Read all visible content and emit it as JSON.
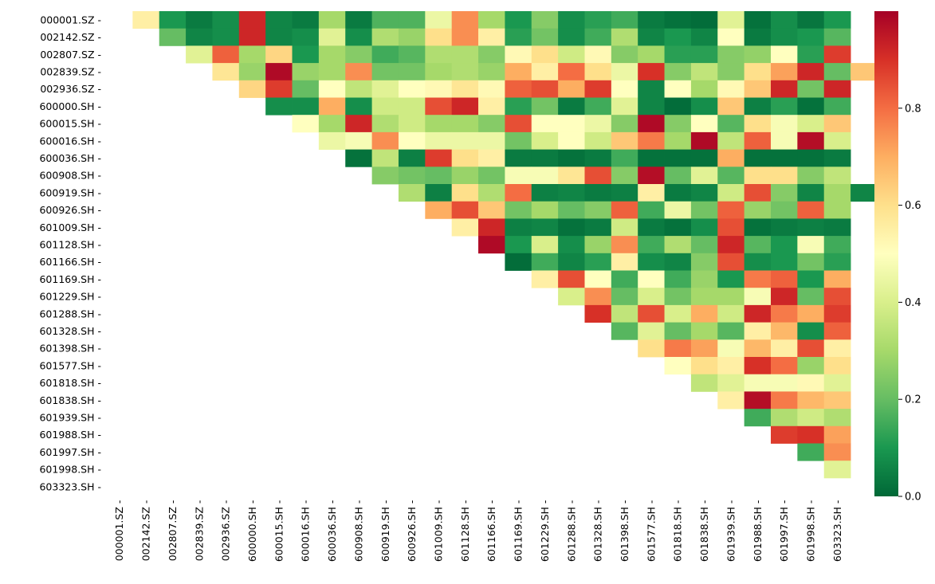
{
  "chart_data": {
    "type": "heatmap",
    "title": "",
    "xlabel": "",
    "ylabel": "",
    "labels": [
      "000001.SZ",
      "002142.SZ",
      "002807.SZ",
      "002839.SZ",
      "002936.SZ",
      "600000.SH",
      "600015.SH",
      "600016.SH",
      "600036.SH",
      "600908.SH",
      "600919.SH",
      "600926.SH",
      "601009.SH",
      "601128.SH",
      "601166.SH",
      "601169.SH",
      "601229.SH",
      "601288.SH",
      "601328.SH",
      "601398.SH",
      "601577.SH",
      "601818.SH",
      "601838.SH",
      "601939.SH",
      "601988.SH",
      "601997.SH",
      "601998.SH",
      "603323.SH"
    ],
    "matrix_layout": "upper triangle, row i lists values for columns j>i",
    "values": [
      [
        0.55,
        0.1,
        0.04,
        0.08,
        0.92,
        0.06,
        0.04,
        0.3,
        0.04,
        0.17,
        0.17,
        0.45,
        0.75,
        0.3,
        0.1,
        0.25,
        0.08,
        0.12,
        0.15,
        0.04,
        0.02,
        0.01,
        0.42,
        0.02,
        0.08,
        0.03,
        0.1
      ],
      [
        0.2,
        0.06,
        0.08,
        0.92,
        0.06,
        0.08,
        0.42,
        0.08,
        0.32,
        0.28,
        0.6,
        0.75,
        0.55,
        0.12,
        0.22,
        0.08,
        0.15,
        0.32,
        0.06,
        0.1,
        0.06,
        0.5,
        0.04,
        0.08,
        0.1,
        0.18
      ],
      [
        0.42,
        0.82,
        0.3,
        0.62,
        0.1,
        0.3,
        0.25,
        0.15,
        0.18,
        0.32,
        0.32,
        0.25,
        0.52,
        0.6,
        0.38,
        0.52,
        0.25,
        0.3,
        0.12,
        0.12,
        0.25,
        0.27,
        0.5,
        0.12,
        0.88
      ],
      [
        0.58,
        0.28,
        0.98,
        0.28,
        0.3,
        0.75,
        0.22,
        0.22,
        0.3,
        0.32,
        0.28,
        0.7,
        0.55,
        0.8,
        0.6,
        0.45,
        0.9,
        0.25,
        0.35,
        0.25,
        0.6,
        0.72,
        0.92,
        0.2,
        0.65
      ],
      [
        0.62,
        0.88,
        0.2,
        0.5,
        0.35,
        0.42,
        0.5,
        0.52,
        0.58,
        0.52,
        0.82,
        0.85,
        0.7,
        0.88,
        0.5,
        0.06,
        0.5,
        0.3,
        0.52,
        0.65,
        0.92,
        0.22,
        0.92
      ],
      [
        0.08,
        0.08,
        0.7,
        0.08,
        0.38,
        0.38,
        0.85,
        0.92,
        0.55,
        0.12,
        0.22,
        0.04,
        0.15,
        0.42,
        0.06,
        0.01,
        0.08,
        0.65,
        0.05,
        0.12,
        0.02,
        0.15
      ],
      [
        0.5,
        0.3,
        0.92,
        0.32,
        0.38,
        0.3,
        0.3,
        0.25,
        0.85,
        0.5,
        0.5,
        0.45,
        0.25,
        0.98,
        0.25,
        0.5,
        0.18,
        0.6,
        0.48,
        0.4,
        0.65
      ],
      [
        0.45,
        0.48,
        0.75,
        0.5,
        0.45,
        0.45,
        0.45,
        0.22,
        0.4,
        0.5,
        0.38,
        0.65,
        0.78,
        0.3,
        0.98,
        0.35,
        0.82,
        0.48,
        0.97,
        0.4
      ],
      [
        0.02,
        0.35,
        0.05,
        0.88,
        0.6,
        0.55,
        0.04,
        0.04,
        0.02,
        0.04,
        0.15,
        0.02,
        0.02,
        0.02,
        0.7,
        0.02,
        0.02,
        0.02,
        0.04
      ],
      [
        0.25,
        0.22,
        0.2,
        0.28,
        0.22,
        0.48,
        0.48,
        0.58,
        0.85,
        0.25,
        0.97,
        0.2,
        0.42,
        0.18,
        0.6,
        0.6,
        0.25,
        0.35
      ],
      [
        0.32,
        0.05,
        0.6,
        0.32,
        0.8,
        0.05,
        0.06,
        0.04,
        0.05,
        0.55,
        0.04,
        0.06,
        0.38,
        0.85,
        0.25,
        0.06,
        0.3,
        0.06
      ],
      [
        0.7,
        0.85,
        0.65,
        0.22,
        0.3,
        0.2,
        0.25,
        0.82,
        0.15,
        0.45,
        0.22,
        0.82,
        0.28,
        0.22,
        0.82,
        0.3
      ],
      [
        0.55,
        0.92,
        0.05,
        0.06,
        0.02,
        0.04,
        0.38,
        0.04,
        0.02,
        0.08,
        0.85,
        0.02,
        0.04,
        0.05,
        0.04
      ],
      [
        0.98,
        0.1,
        0.4,
        0.08,
        0.28,
        0.75,
        0.15,
        0.32,
        0.2,
        0.92,
        0.18,
        0.1,
        0.48,
        0.15
      ],
      [
        0.01,
        0.15,
        0.06,
        0.12,
        0.55,
        0.08,
        0.06,
        0.25,
        0.85,
        0.08,
        0.1,
        0.22,
        0.12
      ],
      [
        0.55,
        0.85,
        0.5,
        0.15,
        0.5,
        0.15,
        0.28,
        0.1,
        0.78,
        0.82,
        0.1,
        0.7
      ],
      [
        0.4,
        0.75,
        0.2,
        0.4,
        0.22,
        0.3,
        0.3,
        0.48,
        0.92,
        0.2,
        0.85
      ],
      [
        0.9,
        0.35,
        0.85,
        0.4,
        0.7,
        0.38,
        0.92,
        0.78,
        0.7,
        0.88
      ],
      [
        0.18,
        0.42,
        0.2,
        0.3,
        0.18,
        0.55,
        0.68,
        0.08,
        0.82
      ],
      [
        0.6,
        0.78,
        0.72,
        0.48,
        0.68,
        0.55,
        0.85,
        0.55
      ],
      [
        0.5,
        0.6,
        0.55,
        0.9,
        0.8,
        0.28,
        0.6
      ],
      [
        0.35,
        0.42,
        0.48,
        0.48,
        0.52,
        0.42
      ],
      [
        0.55,
        0.97,
        0.78,
        0.68,
        0.65
      ],
      [
        0.15,
        0.32,
        0.38,
        0.32
      ],
      [
        0.88,
        0.9,
        0.72
      ],
      [
        0.15,
        0.75
      ],
      [
        0.42
      ]
    ],
    "colormap": "RdYlGn_r",
    "vmin": 0,
    "vmax": 1,
    "colorbar_ticks": [
      "0.0",
      "0.2",
      "0.4",
      "0.6",
      "0.8"
    ],
    "colorbar_tick_values": [
      0,
      0.2,
      0.4,
      0.6,
      0.8
    ],
    "grid": false,
    "legend": "colorbar-right"
  }
}
